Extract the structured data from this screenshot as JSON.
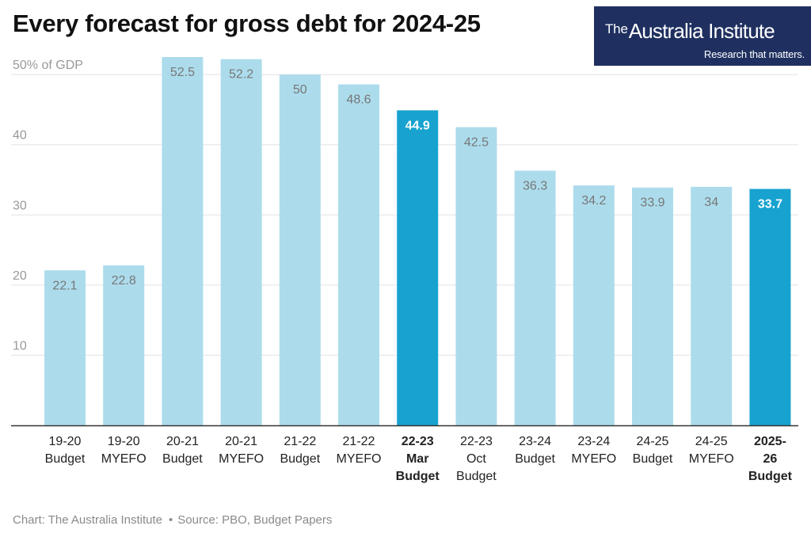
{
  "header": {
    "title": "Every forecast for gross debt for 2024-25"
  },
  "logo": {
    "the": "The",
    "name": "Australia Institute",
    "tagline": "Research that matters."
  },
  "footer": {
    "credit": "Chart: The Australia Institute",
    "separator": "•",
    "source": "Source: PBO, Budget Papers"
  },
  "colors": {
    "bar": "#acdcec",
    "bar_highlight": "#17a2cf",
    "value_label": "#777777",
    "value_label_highlight": "#ffffff",
    "grid": "#e2e2e2",
    "axis": "#333333",
    "tick": "#999999"
  },
  "chart_data": {
    "type": "bar",
    "ylabel": "50% of GDP",
    "ylim": [
      0,
      52.5
    ],
    "yticks": [
      {
        "value": 10,
        "label": "10"
      },
      {
        "value": 20,
        "label": "20"
      },
      {
        "value": 30,
        "label": "30"
      },
      {
        "value": 40,
        "label": "40"
      },
      {
        "value": 50,
        "label": "50% of GDP"
      }
    ],
    "grid": true,
    "categories": [
      [
        "19-20",
        "Budget"
      ],
      [
        "19-20",
        "MYEFO"
      ],
      [
        "20-21",
        "Budget"
      ],
      [
        "20-21",
        "MYEFO"
      ],
      [
        "21-22",
        "Budget"
      ],
      [
        "21-22",
        "MYEFO"
      ],
      [
        "22-23",
        "Mar",
        "Budget"
      ],
      [
        "22-23",
        "Oct",
        "Budget"
      ],
      [
        "23-24",
        "Budget"
      ],
      [
        "23-24",
        "MYEFO"
      ],
      [
        "24-25",
        "Budget"
      ],
      [
        "24-25",
        "MYEFO"
      ],
      [
        "2025-",
        "26",
        "Budget"
      ]
    ],
    "values": [
      22.1,
      22.8,
      52.5,
      52.2,
      50,
      48.6,
      44.9,
      42.5,
      36.3,
      34.2,
      33.9,
      34,
      33.7
    ],
    "value_labels": [
      "22.1",
      "22.8",
      "52.5",
      "52.2",
      "50",
      "48.6",
      "44.9",
      "42.5",
      "36.3",
      "34.2",
      "33.9",
      "34",
      "33.7"
    ],
    "highlighted": [
      false,
      false,
      false,
      false,
      false,
      false,
      true,
      false,
      false,
      false,
      false,
      false,
      true
    ]
  }
}
